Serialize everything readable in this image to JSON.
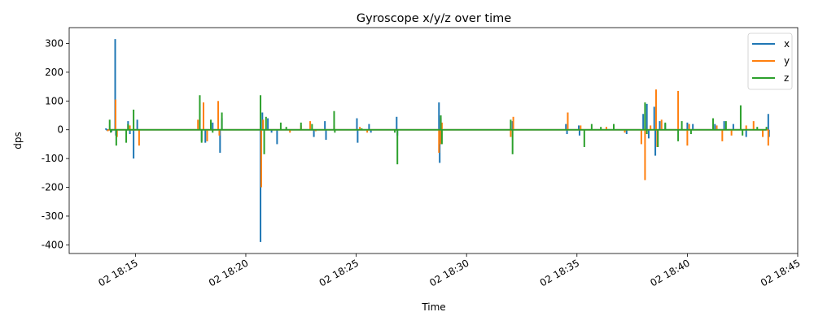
{
  "chart_data": {
    "type": "line",
    "title": "Gyroscope x/y/z over time",
    "xlabel": "Time",
    "ylabel": "dps",
    "x_range": [
      "2024-01-02T18:12:00",
      "2024-01-02T18:45:00"
    ],
    "ylim": [
      -430,
      355
    ],
    "yticks": [
      -400,
      -300,
      -200,
      -100,
      0,
      100,
      200,
      300
    ],
    "xticks": [
      {
        "t": "2024-01-02T18:15:00",
        "label": "02 18:15"
      },
      {
        "t": "2024-01-02T18:20:00",
        "label": "02 18:20"
      },
      {
        "t": "2024-01-02T18:25:00",
        "label": "02 18:25"
      },
      {
        "t": "2024-01-02T18:30:00",
        "label": "02 18:30"
      },
      {
        "t": "2024-01-02T18:35:00",
        "label": "02 18:35"
      },
      {
        "t": "2024-01-02T18:40:00",
        "label": "02 18:40"
      },
      {
        "t": "2024-01-02T18:45:00",
        "label": "02 18:45"
      }
    ],
    "grid": false,
    "legend": "top-right",
    "series": [
      {
        "name": "x",
        "color": "#1f77b4",
        "points": [
          [
            "2024-01-02T18:13:40",
            5
          ],
          [
            "2024-01-02T18:13:55",
            -8
          ],
          [
            "2024-01-02T18:14:05",
            315
          ],
          [
            "2024-01-02T18:14:07",
            -20
          ],
          [
            "2024-01-02T18:14:40",
            30
          ],
          [
            "2024-01-02T18:14:45",
            -15
          ],
          [
            "2024-01-02T18:14:55",
            -100
          ],
          [
            "2024-01-02T18:15:05",
            35
          ],
          [
            "2024-01-02T18:18:00",
            -40
          ],
          [
            "2024-01-02T18:18:05",
            30
          ],
          [
            "2024-01-02T18:18:10",
            -45
          ],
          [
            "2024-01-02T18:18:30",
            25
          ],
          [
            "2024-01-02T18:18:50",
            -80
          ],
          [
            "2024-01-02T18:18:55",
            40
          ],
          [
            "2024-01-02T18:20:40",
            -390
          ],
          [
            "2024-01-02T18:20:45",
            60
          ],
          [
            "2024-01-02T18:21:00",
            40
          ],
          [
            "2024-01-02T18:21:10",
            -10
          ],
          [
            "2024-01-02T18:21:25",
            -50
          ],
          [
            "2024-01-02T18:23:05",
            -25
          ],
          [
            "2024-01-02T18:23:35",
            30
          ],
          [
            "2024-01-02T18:23:38",
            -35
          ],
          [
            "2024-01-02T18:25:02",
            40
          ],
          [
            "2024-01-02T18:25:04",
            -45
          ],
          [
            "2024-01-02T18:25:35",
            20
          ],
          [
            "2024-01-02T18:25:40",
            -10
          ],
          [
            "2024-01-02T18:26:50",
            45
          ],
          [
            "2024-01-02T18:26:52",
            -20
          ],
          [
            "2024-01-02T18:28:45",
            95
          ],
          [
            "2024-01-02T18:28:47",
            -115
          ],
          [
            "2024-01-02T18:28:50",
            40
          ],
          [
            "2024-01-02T18:32:05",
            30
          ],
          [
            "2024-01-02T18:34:30",
            20
          ],
          [
            "2024-01-02T18:34:33",
            -15
          ],
          [
            "2024-01-02T18:35:05",
            15
          ],
          [
            "2024-01-02T18:35:07",
            -20
          ],
          [
            "2024-01-02T18:37:15",
            -15
          ],
          [
            "2024-01-02T18:38:00",
            55
          ],
          [
            "2024-01-02T18:38:10",
            90
          ],
          [
            "2024-01-02T18:38:15",
            -30
          ],
          [
            "2024-01-02T18:38:30",
            80
          ],
          [
            "2024-01-02T18:38:33",
            -90
          ],
          [
            "2024-01-02T18:38:45",
            30
          ],
          [
            "2024-01-02T18:39:00",
            20
          ],
          [
            "2024-01-02T18:40:00",
            25
          ],
          [
            "2024-01-02T18:40:15",
            20
          ],
          [
            "2024-01-02T18:41:15",
            20
          ],
          [
            "2024-01-02T18:41:40",
            30
          ],
          [
            "2024-01-02T18:42:05",
            20
          ],
          [
            "2024-01-02T18:42:40",
            -25
          ],
          [
            "2024-01-02T18:43:40",
            55
          ],
          [
            "2024-01-02T18:43:42",
            -25
          ]
        ]
      },
      {
        "name": "y",
        "color": "#ff7f0e",
        "points": [
          [
            "2024-01-02T18:13:45",
            -5
          ],
          [
            "2024-01-02T18:14:06",
            105
          ],
          [
            "2024-01-02T18:14:10",
            -25
          ],
          [
            "2024-01-02T18:14:45",
            15
          ],
          [
            "2024-01-02T18:15:10",
            -55
          ],
          [
            "2024-01-02T18:17:50",
            35
          ],
          [
            "2024-01-02T18:18:05",
            95
          ],
          [
            "2024-01-02T18:18:15",
            -40
          ],
          [
            "2024-01-02T18:18:45",
            100
          ],
          [
            "2024-01-02T18:18:48",
            -20
          ],
          [
            "2024-01-02T18:20:42",
            -200
          ],
          [
            "2024-01-02T18:20:47",
            35
          ],
          [
            "2024-01-02T18:22:00",
            -10
          ],
          [
            "2024-01-02T18:22:30",
            15
          ],
          [
            "2024-01-02T18:22:55",
            30
          ],
          [
            "2024-01-02T18:23:10",
            -5
          ],
          [
            "2024-01-02T18:24:00",
            15
          ],
          [
            "2024-01-02T18:25:10",
            10
          ],
          [
            "2024-01-02T18:25:30",
            -10
          ],
          [
            "2024-01-02T18:28:45",
            -80
          ],
          [
            "2024-01-02T18:28:50",
            -50
          ],
          [
            "2024-01-02T18:28:53",
            25
          ],
          [
            "2024-01-02T18:32:00",
            -25
          ],
          [
            "2024-01-02T18:32:07",
            45
          ],
          [
            "2024-01-02T18:34:35",
            60
          ],
          [
            "2024-01-02T18:35:10",
            15
          ],
          [
            "2024-01-02T18:36:20",
            10
          ],
          [
            "2024-01-02T18:37:10",
            -10
          ],
          [
            "2024-01-02T18:37:55",
            -50
          ],
          [
            "2024-01-02T18:38:05",
            -175
          ],
          [
            "2024-01-02T18:38:20",
            15
          ],
          [
            "2024-01-02T18:38:35",
            140
          ],
          [
            "2024-01-02T18:38:38",
            -60
          ],
          [
            "2024-01-02T18:38:50",
            35
          ],
          [
            "2024-01-02T18:39:35",
            135
          ],
          [
            "2024-01-02T18:40:00",
            -55
          ],
          [
            "2024-01-02T18:40:05",
            20
          ],
          [
            "2024-01-02T18:41:20",
            15
          ],
          [
            "2024-01-02T18:41:35",
            -40
          ],
          [
            "2024-01-02T18:42:00",
            -20
          ],
          [
            "2024-01-02T18:42:40",
            15
          ],
          [
            "2024-01-02T18:43:00",
            30
          ],
          [
            "2024-01-02T18:43:25",
            -25
          ],
          [
            "2024-01-02T18:43:40",
            -55
          ]
        ]
      },
      {
        "name": "z",
        "color": "#2ca02c",
        "points": [
          [
            "2024-01-02T18:13:50",
            35
          ],
          [
            "2024-01-02T18:13:53",
            -10
          ],
          [
            "2024-01-02T18:14:08",
            -55
          ],
          [
            "2024-01-02T18:14:35",
            -45
          ],
          [
            "2024-01-02T18:14:40",
            20
          ],
          [
            "2024-01-02T18:14:55",
            70
          ],
          [
            "2024-01-02T18:17:55",
            120
          ],
          [
            "2024-01-02T18:18:00",
            -45
          ],
          [
            "2024-01-02T18:18:25",
            35
          ],
          [
            "2024-01-02T18:18:30",
            -10
          ],
          [
            "2024-01-02T18:18:55",
            60
          ],
          [
            "2024-01-02T18:20:40",
            120
          ],
          [
            "2024-01-02T18:20:50",
            -85
          ],
          [
            "2024-01-02T18:20:55",
            45
          ],
          [
            "2024-01-02T18:21:35",
            25
          ],
          [
            "2024-01-02T18:21:50",
            10
          ],
          [
            "2024-01-02T18:22:30",
            25
          ],
          [
            "2024-01-02T18:23:00",
            20
          ],
          [
            "2024-01-02T18:24:00",
            65
          ],
          [
            "2024-01-02T18:24:02",
            -10
          ],
          [
            "2024-01-02T18:25:15",
            5
          ],
          [
            "2024-01-02T18:26:45",
            -10
          ],
          [
            "2024-01-02T18:26:52",
            -120
          ],
          [
            "2024-01-02T18:28:50",
            50
          ],
          [
            "2024-01-02T18:28:53",
            -50
          ],
          [
            "2024-01-02T18:32:00",
            35
          ],
          [
            "2024-01-02T18:32:05",
            -85
          ],
          [
            "2024-01-02T18:35:20",
            -60
          ],
          [
            "2024-01-02T18:35:40",
            20
          ],
          [
            "2024-01-02T18:36:05",
            10
          ],
          [
            "2024-01-02T18:36:40",
            20
          ],
          [
            "2024-01-02T18:38:05",
            95
          ],
          [
            "2024-01-02T18:38:10",
            -15
          ],
          [
            "2024-01-02T18:38:40",
            -60
          ],
          [
            "2024-01-02T18:39:00",
            25
          ],
          [
            "2024-01-02T18:39:35",
            -40
          ],
          [
            "2024-01-02T18:39:45",
            30
          ],
          [
            "2024-01-02T18:40:10",
            -15
          ],
          [
            "2024-01-02T18:41:10",
            40
          ],
          [
            "2024-01-02T18:41:45",
            30
          ],
          [
            "2024-01-02T18:42:25",
            85
          ],
          [
            "2024-01-02T18:42:30",
            -20
          ],
          [
            "2024-01-02T18:43:10",
            10
          ],
          [
            "2024-01-02T18:43:35",
            10
          ]
        ]
      }
    ]
  }
}
